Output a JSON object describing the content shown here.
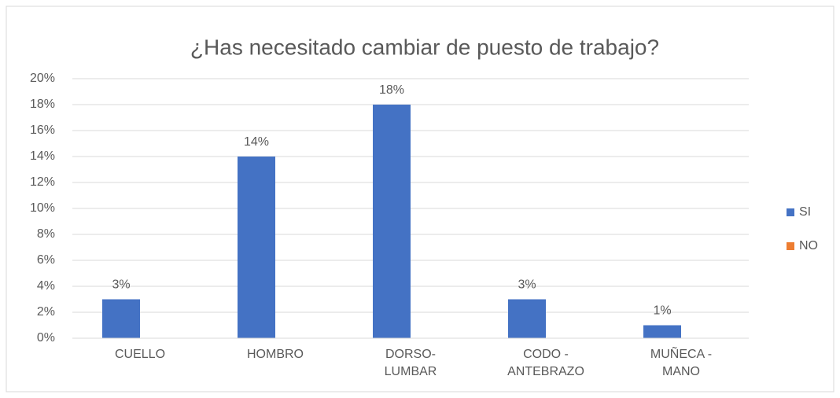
{
  "chart_data": {
    "type": "bar",
    "title": "¿Has necesitado cambiar de puesto de trabajo?",
    "categories": [
      "CUELLO",
      "HOMBRO",
      "DORSO-\nLUMBAR",
      "CODO -\nANTEBRAZO",
      "MUÑECA -\nMANO"
    ],
    "series": [
      {
        "name": "SI",
        "color": "#4472c4",
        "values": [
          3,
          14,
          18,
          3,
          1
        ],
        "value_labels": [
          "3%",
          "14%",
          "18%",
          "3%",
          "1%"
        ]
      },
      {
        "name": "NO",
        "color": "#ed7d31",
        "values": [
          0,
          0,
          0,
          0,
          0
        ]
      }
    ],
    "ylim": [
      0,
      20
    ],
    "yticks": [
      {
        "value": 0,
        "label": "0%"
      },
      {
        "value": 2,
        "label": "2%"
      },
      {
        "value": 4,
        "label": "4%"
      },
      {
        "value": 6,
        "label": "6%"
      },
      {
        "value": 8,
        "label": "8%"
      },
      {
        "value": 10,
        "label": "10%"
      },
      {
        "value": 12,
        "label": "12%"
      },
      {
        "value": 14,
        "label": "14%"
      },
      {
        "value": 16,
        "label": "16%"
      },
      {
        "value": 18,
        "label": "18%"
      },
      {
        "value": 20,
        "label": "20%"
      }
    ],
    "grid": true,
    "legend": "right"
  }
}
